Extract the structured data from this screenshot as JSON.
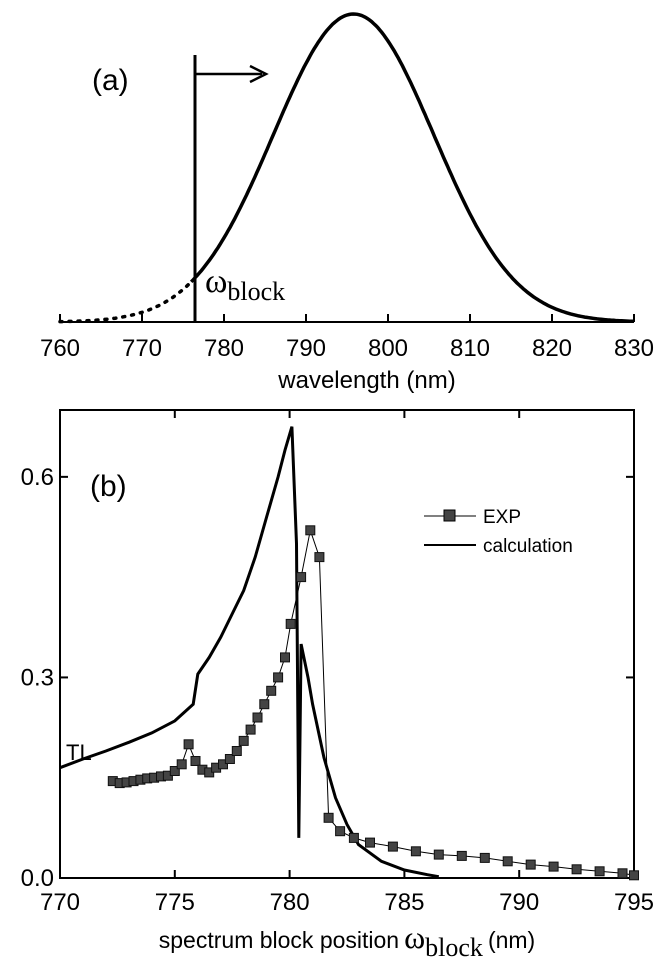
{
  "chart_data": [
    {
      "type": "line",
      "panel_label": "(a)",
      "xlabel": "wavelength (nm)",
      "xlim": [
        760,
        830
      ],
      "x_ticks": [
        "760",
        "770",
        "780",
        "790",
        "800",
        "810",
        "820",
        "830"
      ],
      "block_label_main": "ω",
      "block_label_sub": "block",
      "block_position": 776,
      "spectrum_center": 795.8,
      "spectrum_fwhm": 23.1,
      "series": [
        {
          "style": "dotted",
          "x": [
            760,
            764,
            768,
            772,
            776
          ],
          "y": [
            0.01,
            0.05,
            0.1,
            0.17,
            0.23
          ]
        },
        {
          "style": "solid",
          "x": [
            776,
            780,
            784,
            788,
            792,
            795.8,
            800,
            804,
            808,
            812,
            816,
            820,
            824,
            828,
            830
          ],
          "y": [
            0.23,
            0.41,
            0.62,
            0.82,
            0.96,
            1.0,
            0.94,
            0.79,
            0.58,
            0.38,
            0.22,
            0.11,
            0.05,
            0.02,
            0.01
          ]
        }
      ]
    },
    {
      "type": "line",
      "panel_label": "(b)",
      "xlabel_text": "spectrum block position",
      "xlabel_omega": "ω",
      "xlabel_sub": "block",
      "xlabel_unit": "(nm)",
      "xlim": [
        770,
        795
      ],
      "ylim": [
        0,
        0.7
      ],
      "x_ticks": [
        "770",
        "775",
        "780",
        "785",
        "790",
        "795"
      ],
      "y_ticks": [
        "0.0",
        "0.3",
        "0.6"
      ],
      "annotation": "TL",
      "legend_position": "top-right",
      "series": [
        {
          "name": "EXP",
          "style": "line+square-markers",
          "x": [
            772.3,
            772.6,
            772.9,
            773.2,
            773.5,
            773.8,
            774.1,
            774.4,
            774.7,
            775.0,
            775.3,
            775.6,
            775.9,
            776.2,
            776.5,
            776.8,
            777.1,
            777.4,
            777.7,
            778.0,
            778.3,
            778.6,
            778.9,
            779.2,
            779.5,
            779.8,
            780.05,
            780.5,
            780.9,
            781.3,
            781.7,
            782.2,
            782.8,
            783.5,
            784.5,
            785.5,
            786.5,
            787.5,
            788.5,
            789.5,
            790.5,
            791.5,
            792.5,
            793.5,
            794.5,
            795.0
          ],
          "y": [
            0.145,
            0.142,
            0.143,
            0.145,
            0.147,
            0.149,
            0.15,
            0.152,
            0.153,
            0.16,
            0.17,
            0.2,
            0.175,
            0.162,
            0.158,
            0.165,
            0.17,
            0.178,
            0.19,
            0.205,
            0.222,
            0.24,
            0.26,
            0.28,
            0.3,
            0.33,
            0.38,
            0.45,
            0.52,
            0.48,
            0.09,
            0.07,
            0.06,
            0.053,
            0.047,
            0.04,
            0.035,
            0.033,
            0.03,
            0.025,
            0.02,
            0.017,
            0.013,
            0.01,
            0.007,
            0.004
          ]
        },
        {
          "name": "calculation",
          "style": "solid",
          "x": [
            770,
            771,
            772,
            773,
            774,
            775,
            775.8,
            776,
            776.5,
            777,
            777.5,
            778,
            778.5,
            779,
            779.5,
            779.8,
            780.1,
            780.3,
            780.4,
            780.5,
            780.8,
            781,
            781.5,
            782,
            782.5,
            783,
            784,
            785,
            786,
            786.5
          ],
          "y": [
            0.165,
            0.178,
            0.19,
            0.203,
            0.217,
            0.235,
            0.26,
            0.305,
            0.33,
            0.36,
            0.395,
            0.43,
            0.48,
            0.54,
            0.6,
            0.64,
            0.675,
            0.5,
            0.06,
            0.35,
            0.3,
            0.26,
            0.18,
            0.12,
            0.08,
            0.05,
            0.025,
            0.012,
            0.005,
            0.002
          ]
        }
      ]
    }
  ]
}
